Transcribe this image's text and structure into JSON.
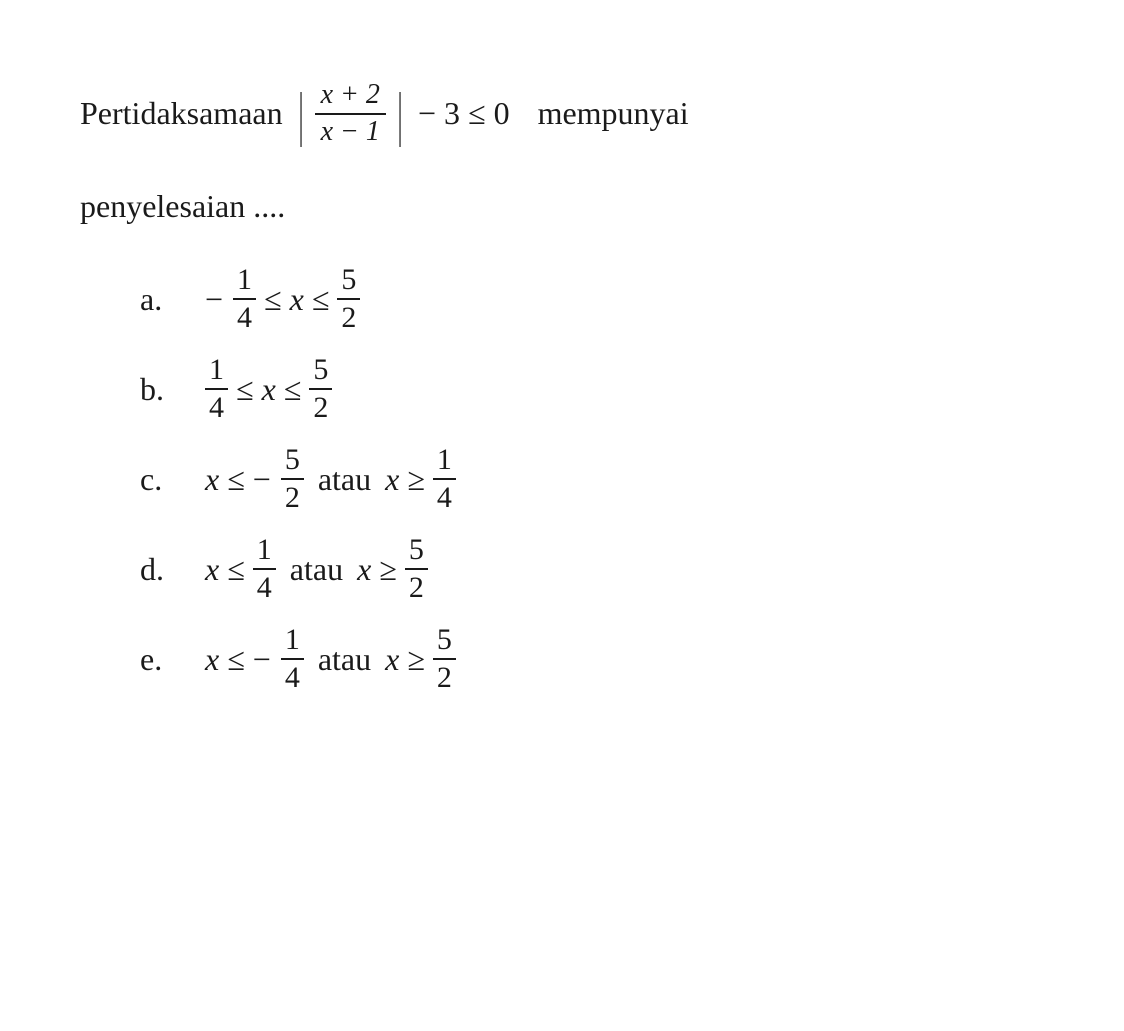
{
  "question": {
    "text_before": "Pertidaksamaan",
    "abs_numerator": "x + 2",
    "abs_denominator": "x − 1",
    "after_abs": "− 3 ≤ 0",
    "text_after": "mempunyai",
    "continuation": "penyelesaian ...."
  },
  "options": [
    {
      "label": "a.",
      "parts": [
        {
          "type": "neg",
          "text": "−"
        },
        {
          "type": "frac",
          "num": "1",
          "den": "4"
        },
        {
          "type": "op",
          "text": "≤"
        },
        {
          "type": "var",
          "text": "x"
        },
        {
          "type": "op",
          "text": "≤"
        },
        {
          "type": "frac",
          "num": "5",
          "den": "2"
        }
      ]
    },
    {
      "label": "b.",
      "parts": [
        {
          "type": "frac",
          "num": "1",
          "den": "4"
        },
        {
          "type": "op",
          "text": "≤"
        },
        {
          "type": "var",
          "text": "x"
        },
        {
          "type": "op",
          "text": "≤"
        },
        {
          "type": "frac",
          "num": "5",
          "den": "2"
        }
      ]
    },
    {
      "label": "c.",
      "parts": [
        {
          "type": "var",
          "text": "x"
        },
        {
          "type": "op",
          "text": "≤"
        },
        {
          "type": "neg",
          "text": "−"
        },
        {
          "type": "frac",
          "num": "5",
          "den": "2"
        },
        {
          "type": "word",
          "text": "atau"
        },
        {
          "type": "var",
          "text": "x"
        },
        {
          "type": "op",
          "text": "≥"
        },
        {
          "type": "frac",
          "num": "1",
          "den": "4"
        }
      ]
    },
    {
      "label": "d.",
      "parts": [
        {
          "type": "var",
          "text": "x"
        },
        {
          "type": "op",
          "text": "≤"
        },
        {
          "type": "frac",
          "num": "1",
          "den": "4"
        },
        {
          "type": "word",
          "text": "atau"
        },
        {
          "type": "var",
          "text": "x"
        },
        {
          "type": "op",
          "text": "≥"
        },
        {
          "type": "frac",
          "num": "5",
          "den": "2"
        }
      ]
    },
    {
      "label": "e.",
      "parts": [
        {
          "type": "var",
          "text": "x"
        },
        {
          "type": "op",
          "text": "≤"
        },
        {
          "type": "neg",
          "text": "−"
        },
        {
          "type": "frac",
          "num": "1",
          "den": "4"
        },
        {
          "type": "word",
          "text": "atau"
        },
        {
          "type": "var",
          "text": "x"
        },
        {
          "type": "op",
          "text": "≥"
        },
        {
          "type": "frac",
          "num": "5",
          "den": "2"
        }
      ]
    }
  ],
  "styling": {
    "background_color": "#ffffff",
    "text_color": "#1a1a1a",
    "font_family": "Georgia serif",
    "question_fontsize": 32,
    "option_fontsize": 32,
    "fraction_fontsize": 28,
    "small_fraction_fontsize": 30
  }
}
